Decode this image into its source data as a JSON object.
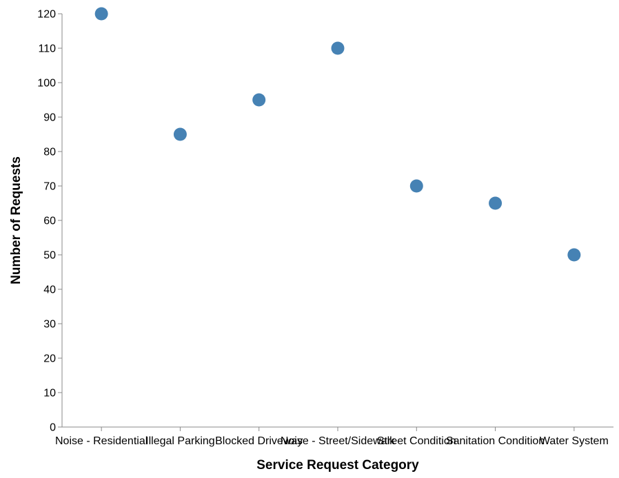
{
  "chart_data": {
    "type": "scatter",
    "title": "",
    "xlabel": "Service Request Category",
    "ylabel": "Number of Requests",
    "categories": [
      "Noise - Residential",
      "Illegal Parking",
      "Blocked Driveway",
      "Noise - Street/Sidewalk",
      "Street Condition",
      "Sanitation Condition",
      "Water System"
    ],
    "values": [
      120,
      85,
      95,
      110,
      70,
      65,
      50
    ],
    "ylim": [
      0,
      120
    ],
    "yticks": [
      0,
      10,
      20,
      30,
      40,
      50,
      60,
      70,
      80,
      90,
      100,
      110,
      120
    ],
    "grid": false,
    "legend": "none",
    "point_color": "#4682b4"
  }
}
